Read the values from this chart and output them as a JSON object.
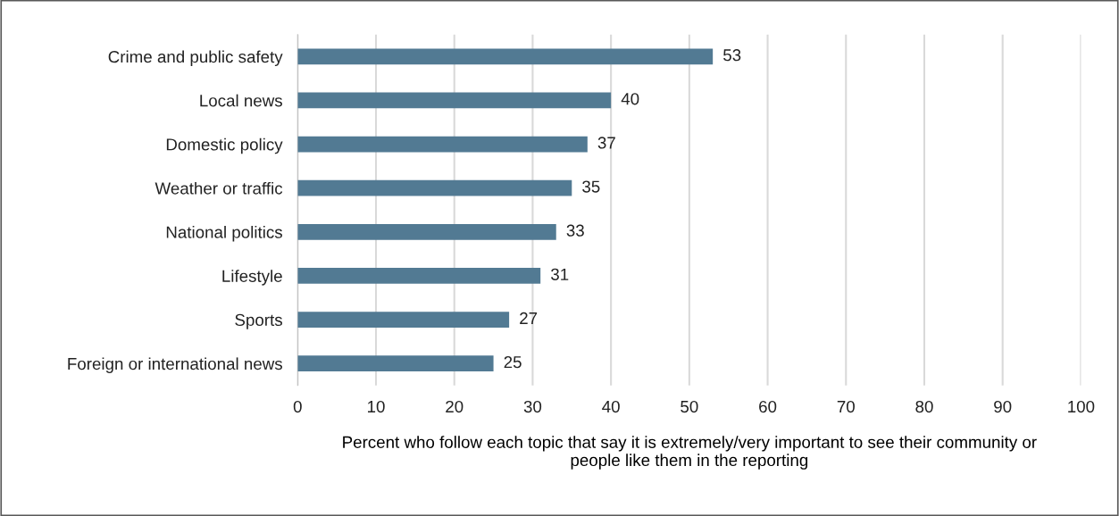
{
  "chart_data": {
    "type": "bar",
    "orientation": "horizontal",
    "categories": [
      "Crime and public safety",
      "Local news",
      "Domestic policy",
      "Weather or traffic",
      "National politics",
      "Lifestyle",
      "Sports",
      "Foreign or international news"
    ],
    "values": [
      53,
      40,
      37,
      35,
      33,
      31,
      27,
      25
    ],
    "color": "#527a93",
    "xlim": [
      0,
      100
    ],
    "xticks": [
      0,
      10,
      20,
      30,
      40,
      50,
      60,
      70,
      80,
      90,
      100
    ],
    "xlabel": "Percent who follow each topic that say it is extremely/very important to see their community or\npeople like them in the reporting",
    "grid": "x",
    "data_labels": true,
    "legend": false
  }
}
